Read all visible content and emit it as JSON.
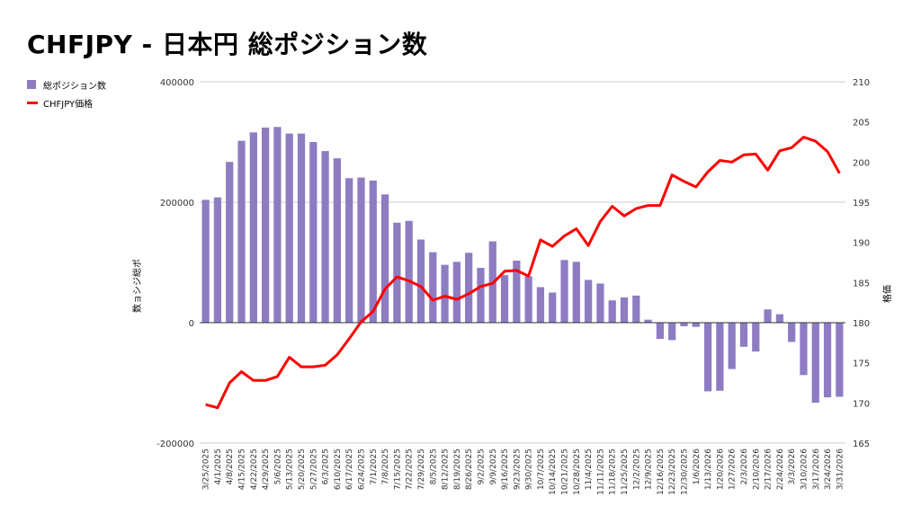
{
  "title": "CHFJPY - 日本円 総ポジション数",
  "colors": {
    "bars": "#8e7cc3",
    "line": "#ff0000",
    "grid": "#cccccc",
    "zero": "#333333"
  },
  "legend": {
    "bar_label": "総ポジション数",
    "line_label": "CHFJPY価格"
  },
  "chart_data": {
    "type": "bar",
    "title": "CHFJPY - 日本円 総ポジション数",
    "ylabel_left": "数ョシジ総ポ",
    "ylabel_right": "格価",
    "y_left_range": [
      -200000,
      400000
    ],
    "y_left_ticks": [
      "-200000",
      "0",
      "200000",
      "400000"
    ],
    "y_right_range": [
      165,
      210
    ],
    "y_right_ticks": [
      "165",
      "170",
      "175",
      "180",
      "185",
      "190",
      "195",
      "200",
      "205",
      "210"
    ],
    "grid": true,
    "legend_position": "top-left",
    "x": [
      "3/25/2025",
      "4/1/2025",
      "4/8/2025",
      "4/15/2025",
      "4/22/2025",
      "4/29/2025",
      "5/6/2025",
      "5/13/2025",
      "5/20/2025",
      "5/27/2025",
      "6/3/2025",
      "6/10/2025",
      "6/17/2025",
      "6/24/2025",
      "7/1/2025",
      "7/8/2025",
      "7/15/2025",
      "7/22/2025",
      "7/29/2025",
      "8/5/2025",
      "8/12/2025",
      "8/19/2025",
      "8/26/2025",
      "9/2/2025",
      "9/9/2025",
      "9/16/2025",
      "9/23/2025",
      "9/30/2025",
      "10/7/2025",
      "10/14/2025",
      "10/21/2025",
      "10/28/2025",
      "11/4/2025",
      "11/11/2025",
      "11/18/2025",
      "11/25/2025",
      "12/2/2025",
      "12/9/2025",
      "12/16/2025",
      "12/23/2025",
      "12/30/2025",
      "1/6/2026",
      "1/13/2026",
      "1/20/2026",
      "1/27/2026",
      "2/3/2026",
      "2/10/2026",
      "2/17/2026",
      "2/24/2026",
      "3/3/2026",
      "3/10/2026",
      "3/17/2026",
      "3/24/2026",
      "3/31/2026"
    ],
    "series": [
      {
        "name": "総ポジション数",
        "type": "bar",
        "axis": "left",
        "values": [
          204000,
          208000,
          267000,
          302000,
          316000,
          324000,
          325000,
          314000,
          314000,
          300000,
          285000,
          273000,
          240000,
          241000,
          236000,
          213000,
          166000,
          169000,
          138000,
          117000,
          96000,
          101000,
          116000,
          91000,
          135000,
          79000,
          103000,
          77000,
          59000,
          50000,
          104000,
          101000,
          71000,
          65000,
          37000,
          42000,
          45000,
          5000,
          -27000,
          -29000,
          -6000,
          -7000,
          -114000,
          -113000,
          -77000,
          -40000,
          -48000,
          22000,
          14000,
          -32000,
          -87000,
          -133000,
          -124000,
          -123000
        ]
      },
      {
        "name": "CHFJPY価格",
        "type": "line",
        "axis": "right",
        "values": [
          169.8,
          169.4,
          172.5,
          173.9,
          172.8,
          172.8,
          173.3,
          175.7,
          174.5,
          174.5,
          174.7,
          176.0,
          178.0,
          180.1,
          181.4,
          184.2,
          185.7,
          185.2,
          184.5,
          182.8,
          183.3,
          182.9,
          183.6,
          184.5,
          184.9,
          186.4,
          186.5,
          185.8,
          190.3,
          189.5,
          190.8,
          191.7,
          189.6,
          192.6,
          194.5,
          193.3,
          194.2,
          194.6,
          194.6,
          198.4,
          197.6,
          196.9,
          198.8,
          200.2,
          200.0,
          200.9,
          201.0,
          199.0,
          201.4,
          201.8,
          203.1,
          202.6,
          201.3,
          198.6
        ]
      }
    ]
  }
}
